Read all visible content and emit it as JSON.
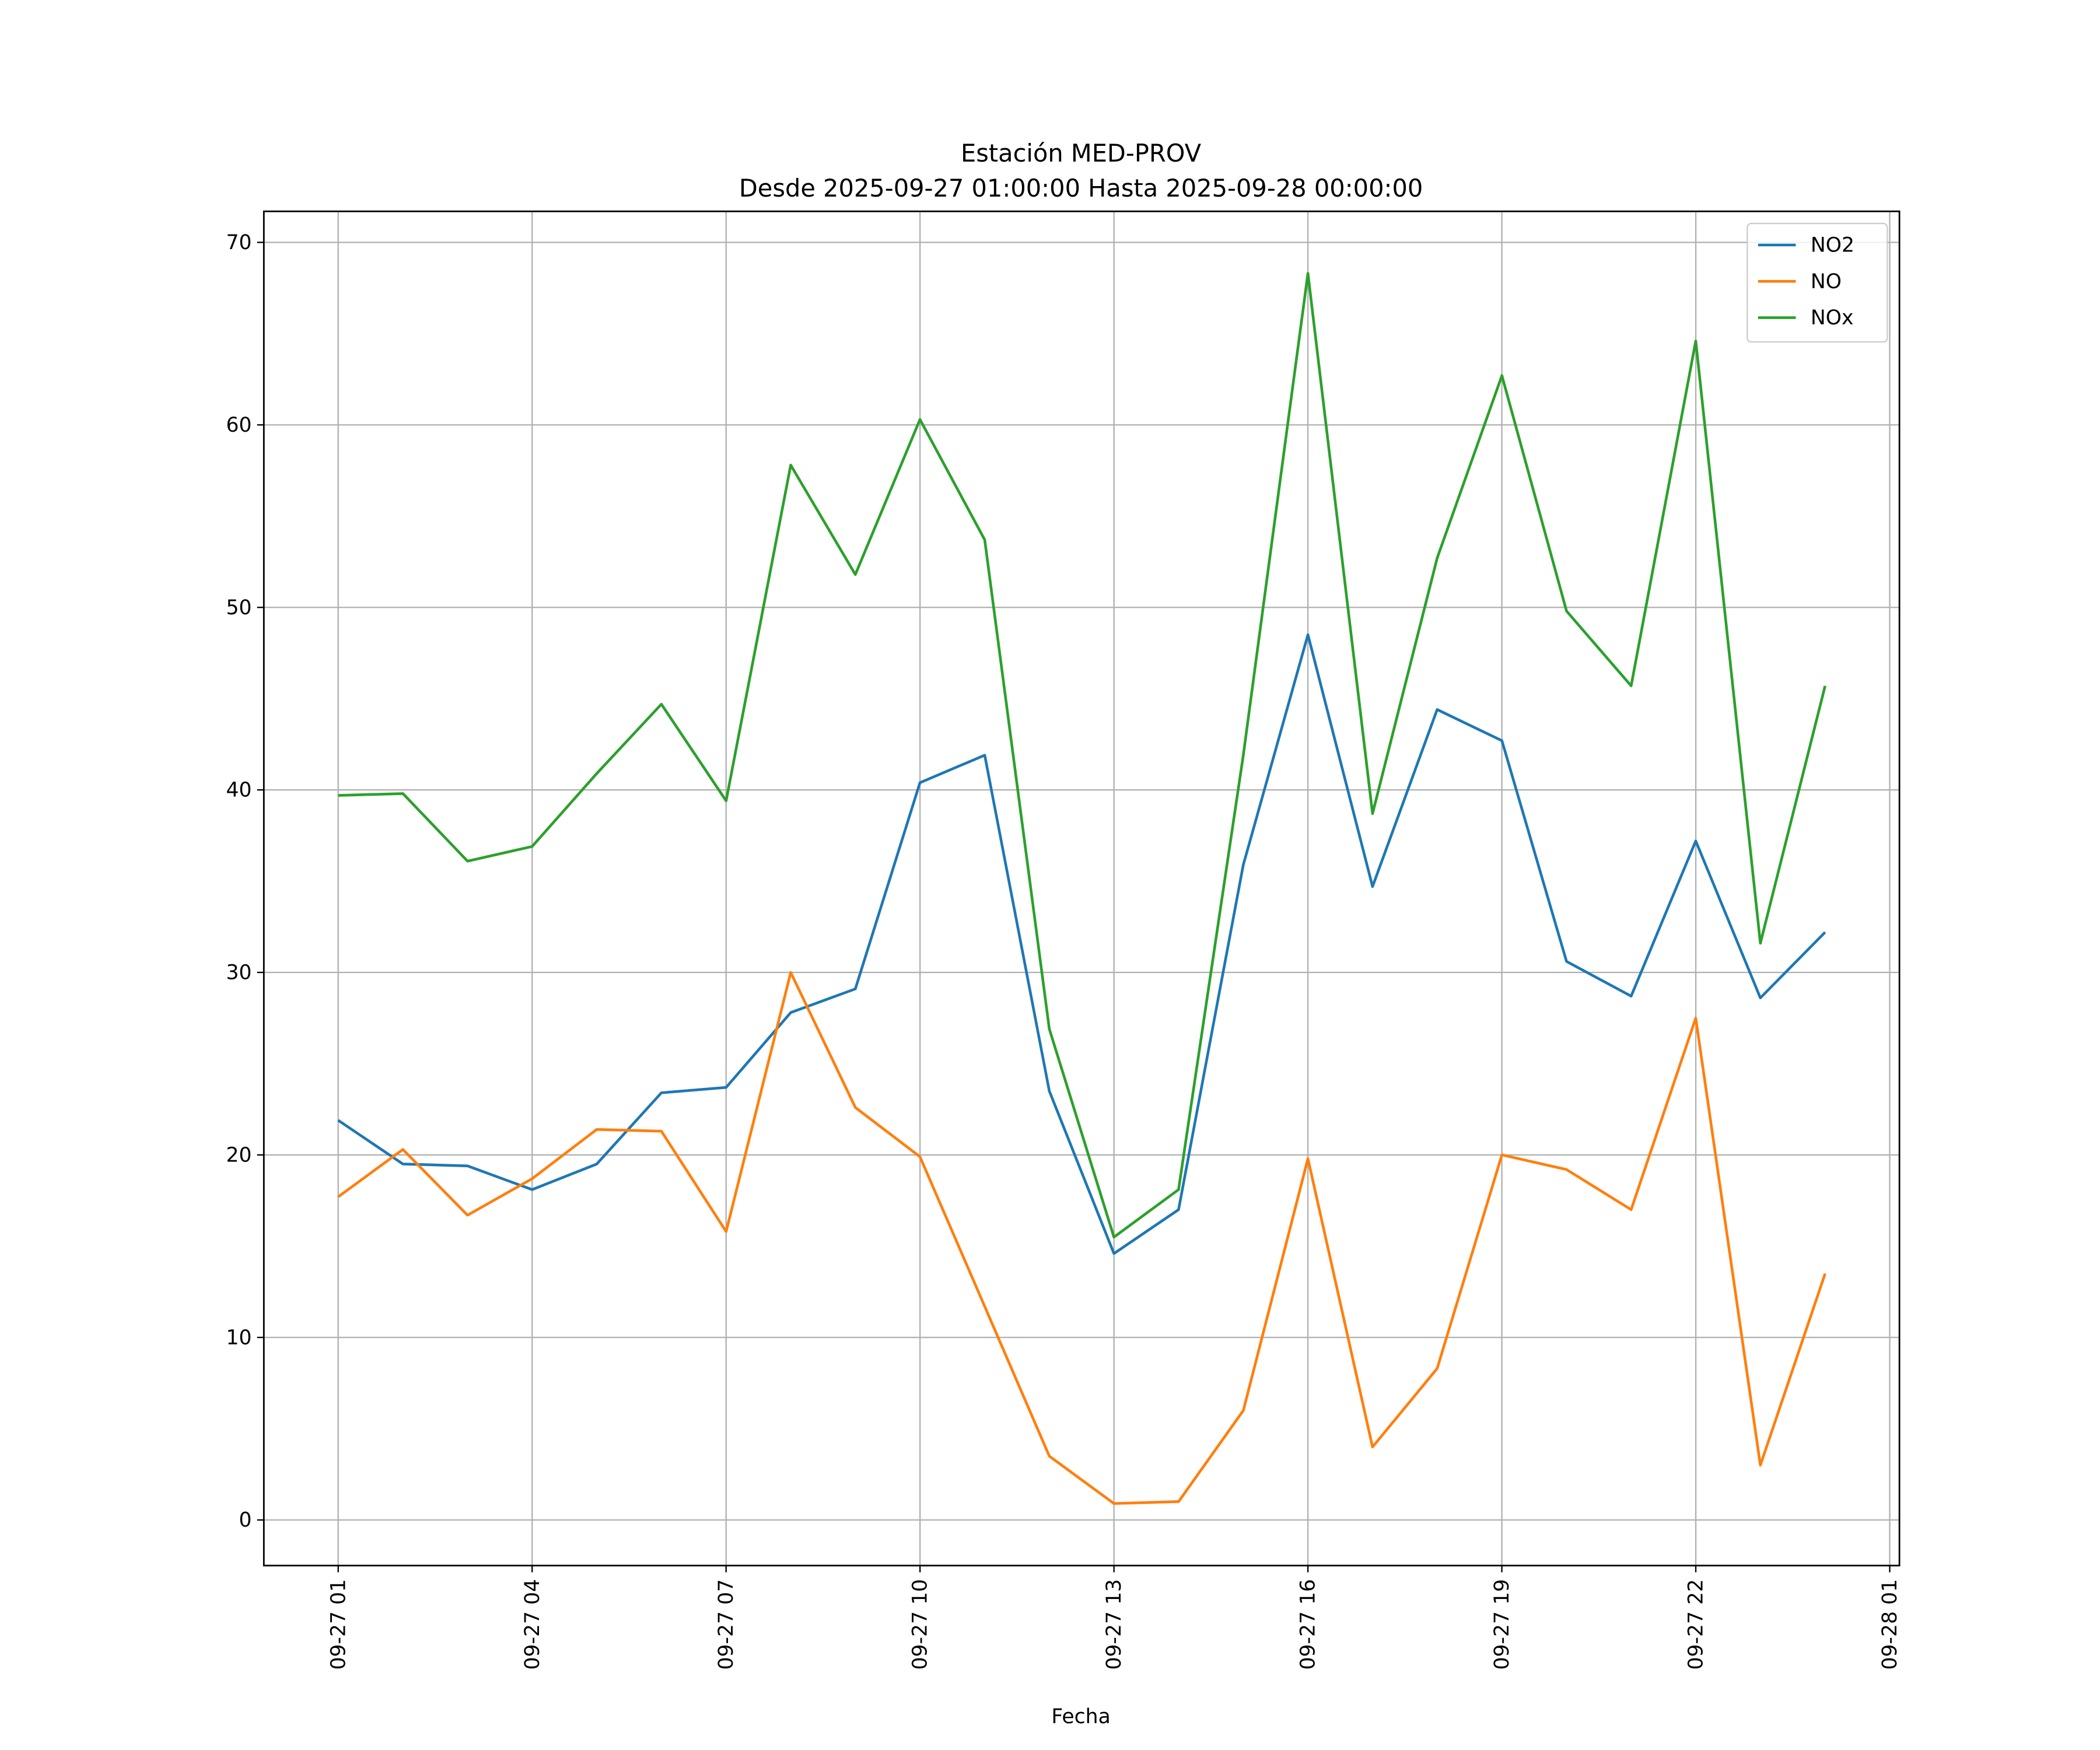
{
  "chart_data": {
    "type": "line",
    "title": "Estación MED-PROV",
    "subtitle": "Desde 2025-09-27 01:00:00 Hasta 2025-09-28 00:00:00",
    "xlabel": "Fecha",
    "ylabel": "",
    "x_hours": [
      1,
      2,
      3,
      4,
      5,
      6,
      7,
      8,
      9,
      10,
      11,
      12,
      13,
      14,
      15,
      16,
      17,
      18,
      19,
      20,
      21,
      22,
      23,
      24
    ],
    "xlim_hours": [
      -0.15,
      25.15
    ],
    "ylim": [
      -2.5,
      71.7
    ],
    "grid": true,
    "legend_position": "top-right",
    "x_ticks": [
      {
        "hour": 1,
        "label": "09-27 01"
      },
      {
        "hour": 4,
        "label": "09-27 04"
      },
      {
        "hour": 7,
        "label": "09-27 07"
      },
      {
        "hour": 10,
        "label": "09-27 10"
      },
      {
        "hour": 13,
        "label": "09-27 13"
      },
      {
        "hour": 16,
        "label": "09-27 16"
      },
      {
        "hour": 19,
        "label": "09-27 19"
      },
      {
        "hour": 22,
        "label": "09-27 22"
      },
      {
        "hour": 25,
        "label": "09-28 01"
      }
    ],
    "y_ticks": [
      {
        "value": 0,
        "label": "0"
      },
      {
        "value": 10,
        "label": "10"
      },
      {
        "value": 20,
        "label": "20"
      },
      {
        "value": 30,
        "label": "30"
      },
      {
        "value": 40,
        "label": "40"
      },
      {
        "value": 50,
        "label": "50"
      },
      {
        "value": 60,
        "label": "60"
      },
      {
        "value": 70,
        "label": "70"
      }
    ],
    "series": [
      {
        "name": "NO2",
        "color": "#1f77b4",
        "values": [
          21.9,
          19.5,
          19.4,
          18.1,
          19.5,
          23.4,
          23.7,
          27.8,
          29.1,
          40.4,
          41.9,
          23.5,
          14.6,
          17.0,
          35.9,
          48.5,
          34.7,
          44.4,
          42.7,
          30.6,
          28.7,
          37.2,
          28.6,
          32.2
        ]
      },
      {
        "name": "NO",
        "color": "#ff7f0e",
        "values": [
          17.7,
          20.3,
          16.7,
          18.7,
          21.4,
          21.3,
          15.8,
          30.0,
          22.6,
          19.9,
          11.7,
          3.5,
          0.9,
          1.0,
          6.0,
          19.8,
          4.0,
          8.3,
          20.0,
          19.2,
          17.0,
          27.5,
          3.0,
          13.5
        ]
      },
      {
        "name": "NOx",
        "color": "#2ca02c",
        "values": [
          39.7,
          39.8,
          36.1,
          36.9,
          40.9,
          44.7,
          39.4,
          57.8,
          51.8,
          60.3,
          53.7,
          26.9,
          15.5,
          18.1,
          41.9,
          68.3,
          38.7,
          52.7,
          62.7,
          49.8,
          45.7,
          64.6,
          31.6,
          45.7
        ]
      }
    ]
  }
}
